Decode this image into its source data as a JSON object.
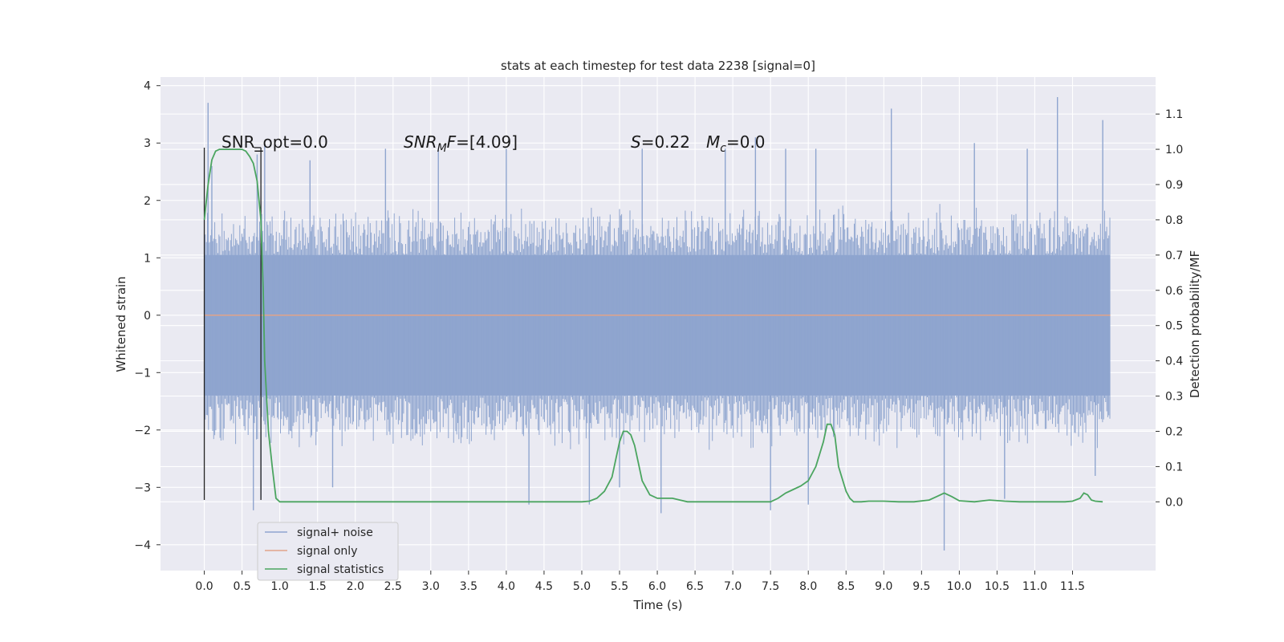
{
  "chart_data": {
    "type": "line",
    "title": "stats at each timestep for test data 2238 [signal=0]",
    "xlabel": "Time (s)",
    "ylabel": "Whitened strain",
    "y2label": "Detection probability/MF",
    "xlim": [
      -0.58,
      12.6
    ],
    "ylim": [
      -4.45,
      4.15
    ],
    "y2lim": [
      -0.195,
      1.205
    ],
    "x_ticks": [
      "0.0",
      "0.5",
      "1.0",
      "1.5",
      "2.0",
      "2.5",
      "3.0",
      "3.5",
      "4.0",
      "4.5",
      "5.0",
      "5.5",
      "6.0",
      "6.5",
      "7.0",
      "7.5",
      "8.0",
      "8.5",
      "9.0",
      "9.5",
      "10.0",
      "10.5",
      "11.0",
      "11.5"
    ],
    "y_ticks": [
      "4",
      "3",
      "2",
      "1",
      "0",
      "−1",
      "−2",
      "−3",
      "−4"
    ],
    "y2_ticks": [
      "1.1",
      "1.0",
      "0.9",
      "0.8",
      "0.7",
      "0.6",
      "0.5",
      "0.4",
      "0.3",
      "0.2",
      "0.1",
      "0.0"
    ],
    "grid": true,
    "legend_position": "lower-left",
    "annotations": {
      "snr_opt": "SNR_opt=0.0",
      "snr_mf_prefix": "SNR",
      "snr_mf_sub": "M",
      "snr_mf_mid": "F",
      "snr_mf_value": "=[4.09]",
      "s_symbol": "S",
      "s_value": "=0.22",
      "mc_symbol": "M",
      "mc_sub": "c",
      "mc_value": "=0.0"
    },
    "window_markers_x": [
      0.0,
      0.75
    ],
    "series": [
      {
        "name": "signal+ noise",
        "color": "#8fa5cf",
        "duration": 12.0,
        "band": [
          -1.4,
          1.05
        ],
        "outer_band": [
          -2.1,
          1.7
        ],
        "peaks": [
          {
            "x": 0.05,
            "y": 3.7
          },
          {
            "x": 0.1,
            "y": 2.6
          },
          {
            "x": 0.7,
            "y": 2.8
          },
          {
            "x": 0.8,
            "y": 3.0
          },
          {
            "x": 1.4,
            "y": 2.7
          },
          {
            "x": 2.4,
            "y": 2.9
          },
          {
            "x": 3.1,
            "y": 2.9
          },
          {
            "x": 4.0,
            "y": 2.9
          },
          {
            "x": 5.8,
            "y": 2.9
          },
          {
            "x": 6.9,
            "y": 2.9
          },
          {
            "x": 7.3,
            "y": 3.1
          },
          {
            "x": 7.7,
            "y": 2.9
          },
          {
            "x": 8.1,
            "y": 2.9
          },
          {
            "x": 9.1,
            "y": 3.6
          },
          {
            "x": 10.2,
            "y": 3.0
          },
          {
            "x": 10.9,
            "y": 2.9
          },
          {
            "x": 11.3,
            "y": 3.8
          },
          {
            "x": 11.9,
            "y": 3.4
          },
          {
            "x": 0.65,
            "y": -3.4
          },
          {
            "x": 0.75,
            "y": -3.2
          },
          {
            "x": 1.7,
            "y": -3.0
          },
          {
            "x": 4.3,
            "y": -3.3
          },
          {
            "x": 5.1,
            "y": -3.3
          },
          {
            "x": 5.5,
            "y": -3.0
          },
          {
            "x": 6.05,
            "y": -3.45
          },
          {
            "x": 7.5,
            "y": -3.4
          },
          {
            "x": 8.0,
            "y": -3.3
          },
          {
            "x": 9.8,
            "y": -4.1
          },
          {
            "x": 10.6,
            "y": -3.2
          },
          {
            "x": 11.8,
            "y": -2.8
          }
        ]
      },
      {
        "name": "signal only",
        "color": "#e1a38a",
        "x": [
          0.0,
          12.0
        ],
        "y": [
          0.0,
          0.0
        ]
      },
      {
        "name": "signal statistics",
        "color": "#4ba560",
        "axis": "right",
        "x": [
          0.0,
          0.05,
          0.1,
          0.15,
          0.2,
          0.3,
          0.4,
          0.5,
          0.55,
          0.6,
          0.65,
          0.7,
          0.75,
          0.78,
          0.8,
          0.85,
          0.9,
          0.95,
          1.0,
          1.5,
          2.0,
          2.5,
          3.0,
          3.5,
          4.0,
          4.5,
          5.0,
          5.1,
          5.2,
          5.3,
          5.4,
          5.45,
          5.5,
          5.55,
          5.6,
          5.65,
          5.7,
          5.8,
          5.9,
          6.0,
          6.1,
          6.2,
          6.3,
          6.4,
          6.5,
          7.0,
          7.5,
          7.6,
          7.7,
          7.8,
          7.9,
          8.0,
          8.1,
          8.2,
          8.25,
          8.3,
          8.35,
          8.4,
          8.5,
          8.55,
          8.6,
          8.7,
          8.8,
          9.0,
          9.2,
          9.4,
          9.6,
          9.7,
          9.8,
          9.9,
          10.0,
          10.2,
          10.4,
          10.6,
          10.8,
          11.0,
          11.2,
          11.4,
          11.5,
          11.6,
          11.65,
          11.7,
          11.75,
          11.8,
          11.9
        ],
        "y": [
          0.8,
          0.9,
          0.97,
          0.995,
          1.0,
          1.0,
          1.0,
          1.0,
          0.995,
          0.98,
          0.96,
          0.91,
          0.8,
          0.6,
          0.4,
          0.2,
          0.1,
          0.01,
          0.0,
          0.0,
          0.0,
          0.0,
          0.0,
          0.0,
          0.0,
          0.0,
          0.0,
          0.002,
          0.01,
          0.03,
          0.07,
          0.12,
          0.17,
          0.2,
          0.2,
          0.19,
          0.16,
          0.06,
          0.02,
          0.01,
          0.01,
          0.01,
          0.005,
          0.0,
          0.0,
          0.0,
          0.0,
          0.01,
          0.025,
          0.035,
          0.045,
          0.06,
          0.1,
          0.17,
          0.22,
          0.22,
          0.19,
          0.1,
          0.03,
          0.01,
          0.0,
          0.0,
          0.002,
          0.002,
          0.0,
          0.0,
          0.005,
          0.015,
          0.025,
          0.015,
          0.003,
          0.0,
          0.005,
          0.002,
          0.0,
          0.0,
          0.0,
          0.0,
          0.002,
          0.01,
          0.025,
          0.02,
          0.005,
          0.002,
          0.0
        ]
      }
    ]
  }
}
